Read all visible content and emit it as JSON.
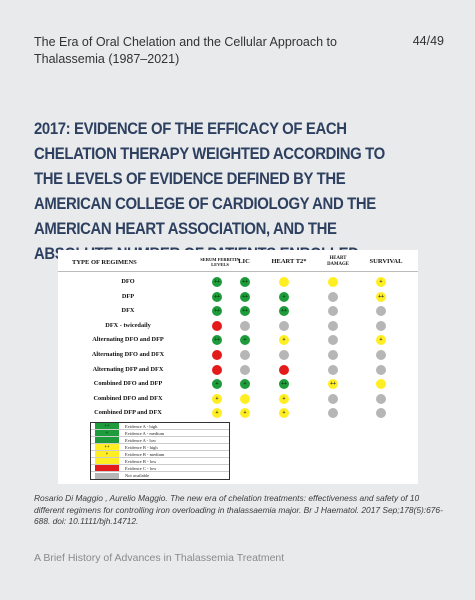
{
  "header": {
    "title": "The Era of Oral Chelation and the Cellular Approach to Thalassemia  (1987–2021)",
    "page": "44/49"
  },
  "heading": "2017: Evidence of the efficacy of each chelation therapy weighted according to the levels of evidence defined by the American College of Cardiology and the American Heart Association, and the absolute number of patients enrolled",
  "table": {
    "col_regimen": "TYPE OF REGIMENS",
    "columns": [
      "SERUM FERRITIN LEVELS",
      "LIC",
      "HEART T2*",
      "HEART DAMAGE",
      "SURVIVAL"
    ],
    "rows": [
      {
        "label": "DFO",
        "cells": [
          {
            "c": "G",
            "t": "++"
          },
          {
            "c": "G",
            "t": "++"
          },
          {
            "c": "Y",
            "t": ""
          },
          {
            "c": "Y",
            "t": ""
          },
          {
            "c": "Y",
            "t": "+"
          }
        ]
      },
      {
        "label": "DFP",
        "cells": [
          {
            "c": "G",
            "t": "++"
          },
          {
            "c": "G",
            "t": "++"
          },
          {
            "c": "G",
            "t": "+"
          },
          {
            "c": "N",
            "t": ""
          },
          {
            "c": "Y",
            "t": "++"
          }
        ]
      },
      {
        "label": "DFX",
        "cells": [
          {
            "c": "G",
            "t": "++"
          },
          {
            "c": "G",
            "t": "++"
          },
          {
            "c": "G",
            "t": "++"
          },
          {
            "c": "N",
            "t": ""
          },
          {
            "c": "N",
            "t": ""
          }
        ]
      },
      {
        "label": "DFX - twicedaily",
        "cells": [
          {
            "c": "R",
            "t": ""
          },
          {
            "c": "N",
            "t": ""
          },
          {
            "c": "N",
            "t": ""
          },
          {
            "c": "N",
            "t": ""
          },
          {
            "c": "N",
            "t": ""
          }
        ]
      },
      {
        "label": "Alternating DFO and DFP",
        "cells": [
          {
            "c": "G",
            "t": "++"
          },
          {
            "c": "G",
            "t": "+"
          },
          {
            "c": "Y",
            "t": "+"
          },
          {
            "c": "N",
            "t": ""
          },
          {
            "c": "Y",
            "t": "+"
          }
        ]
      },
      {
        "label": "Alternating DFO and DFX",
        "cells": [
          {
            "c": "R",
            "t": ""
          },
          {
            "c": "N",
            "t": ""
          },
          {
            "c": "N",
            "t": ""
          },
          {
            "c": "N",
            "t": ""
          },
          {
            "c": "N",
            "t": ""
          }
        ]
      },
      {
        "label": "Alternating DFP and DFX",
        "cells": [
          {
            "c": "R",
            "t": ""
          },
          {
            "c": "N",
            "t": ""
          },
          {
            "c": "R",
            "t": ""
          },
          {
            "c": "N",
            "t": ""
          },
          {
            "c": "N",
            "t": ""
          }
        ]
      },
      {
        "label": "Combined DFO and DFP",
        "cells": [
          {
            "c": "G",
            "t": "+"
          },
          {
            "c": "G",
            "t": "+"
          },
          {
            "c": "G",
            "t": "++"
          },
          {
            "c": "Y",
            "t": "++"
          },
          {
            "c": "Y",
            "t": ""
          }
        ]
      },
      {
        "label": "Combined DFO and DFX",
        "cells": [
          {
            "c": "Y",
            "t": "+"
          },
          {
            "c": "Y",
            "t": ""
          },
          {
            "c": "Y",
            "t": "+"
          },
          {
            "c": "N",
            "t": ""
          },
          {
            "c": "N",
            "t": ""
          }
        ]
      },
      {
        "label": "Combined DFP and DFX",
        "cells": [
          {
            "c": "Y",
            "t": "+"
          },
          {
            "c": "Y",
            "t": "+"
          },
          {
            "c": "Y",
            "t": "+"
          },
          {
            "c": "N",
            "t": ""
          },
          {
            "c": "N",
            "t": ""
          }
        ]
      }
    ],
    "legend": [
      {
        "sym": "++",
        "color": "#1e9c3c",
        "text": "Evidence A - high"
      },
      {
        "sym": "+",
        "color": "#1e9c3c",
        "text": "Evidence A - medium"
      },
      {
        "sym": "",
        "color": "#1e9c3c",
        "text": "Evidence A - low"
      },
      {
        "sym": "++",
        "color": "#ffee22",
        "text": "Evidence B - high"
      },
      {
        "sym": "+",
        "color": "#ffee22",
        "text": "Evidence B - medium"
      },
      {
        "sym": "",
        "color": "#ffee22",
        "text": "Evidence B - low"
      },
      {
        "sym": "",
        "color": "#e31b1b",
        "text": "Evidence C - low"
      },
      {
        "sym": "",
        "color": "#b6b6b6",
        "text": "Not available"
      }
    ]
  },
  "citation": "Rosario Di Maggio , Aurelio Maggio. The new era of chelation treatments: effectiveness and safety of 10 different regimens for controlling iron overloading in thalassaemia major. Br J Haematol. 2017 Sep;178(5):676-688. doi: 10.1111/bjh.14712.",
  "footer": "A Brief History of Advances in Thalassemia Treatment"
}
